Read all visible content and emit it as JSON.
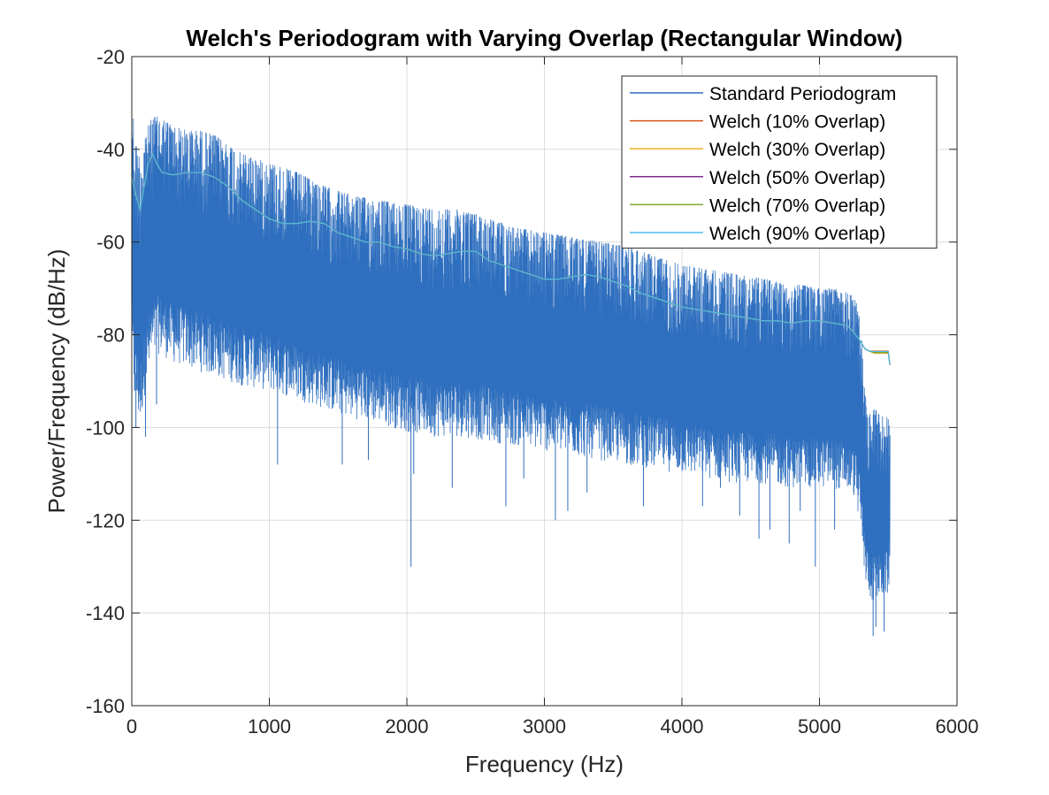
{
  "chart_data": {
    "type": "line",
    "title": "Welch's Periodogram with Varying Overlap (Rectangular Window)",
    "xlabel": "Frequency (Hz)",
    "ylabel": "Power/Frequency (dB/Hz)",
    "xlim": [
      0,
      6000
    ],
    "ylim": [
      -160,
      -20
    ],
    "xticks": [
      0,
      1000,
      2000,
      3000,
      4000,
      5000,
      6000
    ],
    "yticks": [
      -160,
      -140,
      -120,
      -100,
      -80,
      -60,
      -40,
      -20
    ],
    "xtick_labels": [
      "0",
      "1000",
      "2000",
      "3000",
      "4000",
      "5000",
      "6000"
    ],
    "ytick_labels": [
      "-160",
      "-140",
      "-120",
      "-100",
      "-80",
      "-60",
      "-40",
      "-20"
    ],
    "grid": true,
    "legend_position": "top-right",
    "standard_periodogram": {
      "name": "Standard Periodogram",
      "color": "#2f6fbf",
      "upper_envelope": {
        "x": [
          0,
          20,
          60,
          100,
          150,
          200,
          300,
          400,
          500,
          600,
          700,
          800,
          1000,
          1200,
          1400,
          1600,
          1800,
          2000,
          2200,
          2400,
          2600,
          2800,
          3000,
          3200,
          3400,
          3600,
          3800,
          4000,
          4200,
          4400,
          4600,
          4800,
          5000,
          5100,
          5200,
          5260,
          5300,
          5320,
          5350,
          5400,
          5450,
          5500,
          5512
        ],
        "y": [
          -28,
          -38,
          -42,
          -36,
          -33,
          -33,
          -35,
          -36,
          -36,
          -37,
          -39,
          -41,
          -43,
          -45,
          -48,
          -50,
          -51,
          -52,
          -53,
          -53,
          -55,
          -57,
          -58,
          -59,
          -60,
          -61,
          -63,
          -65,
          -66,
          -67,
          -68,
          -69,
          -70,
          -70,
          -71,
          -72,
          -78,
          -90,
          -97,
          -96,
          -97,
          -98,
          -99
        ]
      },
      "lower_envelope": {
        "x": [
          0,
          20,
          60,
          100,
          150,
          200,
          300,
          400,
          500,
          600,
          700,
          800,
          1000,
          1200,
          1400,
          1600,
          1800,
          2000,
          2200,
          2400,
          2600,
          2800,
          3000,
          3200,
          3400,
          3600,
          3800,
          4000,
          4200,
          4400,
          4600,
          4800,
          5000,
          5100,
          5200,
          5260,
          5300,
          5320,
          5350,
          5400,
          5450,
          5500,
          5512
        ],
        "y": [
          -86,
          -95,
          -100,
          -92,
          -86,
          -84,
          -86,
          -87,
          -88,
          -89,
          -90,
          -91,
          -92,
          -94,
          -96,
          -98,
          -99,
          -101,
          -102,
          -102,
          -103,
          -104,
          -105,
          -106,
          -107,
          -108,
          -109,
          -110,
          -111,
          -112,
          -112,
          -113,
          -113,
          -113,
          -114,
          -115,
          -122,
          -130,
          -136,
          -138,
          -137,
          -136,
          -132
        ]
      },
      "spikes": {
        "x": [
          30,
          100,
          180,
          1060,
          1530,
          1720,
          2030,
          2050,
          2330,
          2720,
          2850,
          3080,
          3170,
          3310,
          3720,
          4150,
          4280,
          4420,
          4560,
          4640,
          4780,
          4860,
          4970,
          5110,
          5170,
          5390,
          5410,
          5470
        ],
        "y": [
          -100,
          -102,
          -95,
          -108,
          -108,
          -107,
          -130,
          -110,
          -113,
          -117,
          -111,
          -120,
          -118,
          -114,
          -117,
          -117,
          -113,
          -119,
          -124,
          -122,
          -125,
          -118,
          -130,
          -122,
          -111,
          -145,
          -143,
          -144
        ]
      }
    },
    "series": [
      {
        "name": "Welch (10% Overlap)",
        "color": "#d95319",
        "x": [
          0,
          30,
          60,
          90,
          120,
          150,
          180,
          220,
          300,
          400,
          500,
          600,
          700,
          800,
          900,
          1000,
          1100,
          1200,
          1300,
          1400,
          1500,
          1600,
          1700,
          1800,
          1900,
          2000,
          2100,
          2200,
          2300,
          2400,
          2500,
          2600,
          2700,
          2800,
          2900,
          3000,
          3100,
          3200,
          3300,
          3400,
          3500,
          3600,
          3700,
          3800,
          3900,
          4000,
          4100,
          4200,
          4300,
          4400,
          4500,
          4600,
          4700,
          4800,
          4900,
          5000,
          5100,
          5200,
          5250,
          5300,
          5330,
          5360,
          5400,
          5450,
          5500,
          5512
        ],
        "y": [
          -46,
          -50,
          -53,
          -48,
          -43,
          -41,
          -43,
          -45,
          -45.5,
          -45,
          -45,
          -46,
          -48,
          -51,
          -53,
          -55,
          -56,
          -56,
          -55.5,
          -56,
          -58,
          -59,
          -60,
          -60,
          -61,
          -61.5,
          -62.5,
          -63,
          -62.5,
          -62,
          -62,
          -64,
          -65,
          -66,
          -67,
          -68,
          -68,
          -67.5,
          -67,
          -67.5,
          -68.5,
          -69.5,
          -71,
          -72,
          -73,
          -74,
          -74.5,
          -75,
          -75.5,
          -76,
          -76.5,
          -77,
          -77,
          -77.5,
          -77,
          -77,
          -77.5,
          -78,
          -79.5,
          -81.5,
          -83,
          -83.5,
          -83.5,
          -83.5,
          -83.5,
          -86.5
        ]
      },
      {
        "name": "Welch (30% Overlap)",
        "color": "#edb120",
        "x": [
          0,
          30,
          60,
          90,
          120,
          150,
          180,
          220,
          300,
          400,
          500,
          600,
          700,
          800,
          900,
          1000,
          1100,
          1200,
          1300,
          1400,
          1500,
          1600,
          1700,
          1800,
          1900,
          2000,
          2100,
          2200,
          2300,
          2400,
          2500,
          2600,
          2700,
          2800,
          2900,
          3000,
          3100,
          3200,
          3300,
          3400,
          3500,
          3600,
          3700,
          3800,
          3900,
          4000,
          4100,
          4200,
          4300,
          4400,
          4500,
          4600,
          4700,
          4800,
          4900,
          5000,
          5100,
          5200,
          5250,
          5300,
          5330,
          5360,
          5400,
          5450,
          5500,
          5512
        ],
        "y": [
          -46,
          -50,
          -53,
          -48,
          -43,
          -41,
          -43,
          -45,
          -45.5,
          -45,
          -45,
          -46,
          -48,
          -51,
          -53,
          -55,
          -56,
          -56,
          -55.5,
          -56,
          -58,
          -59,
          -60,
          -60,
          -61,
          -61.5,
          -62.5,
          -63,
          -62.5,
          -62,
          -62,
          -64,
          -65,
          -66,
          -67,
          -68,
          -68,
          -67.5,
          -67,
          -67.5,
          -68.5,
          -69.5,
          -71,
          -72,
          -73,
          -74,
          -74.5,
          -75,
          -75.5,
          -76,
          -76.5,
          -77,
          -77,
          -77.5,
          -77,
          -77,
          -77.5,
          -78,
          -79.5,
          -81.5,
          -83,
          -83.5,
          -84,
          -84,
          -84,
          -86.5
        ]
      },
      {
        "name": "Welch (50% Overlap)",
        "color": "#7e2f8e",
        "x": [
          0,
          30,
          60,
          90,
          120,
          150,
          180,
          220,
          300,
          400,
          500,
          600,
          700,
          800,
          900,
          1000,
          1100,
          1200,
          1300,
          1400,
          1500,
          1600,
          1700,
          1800,
          1900,
          2000,
          2100,
          2200,
          2300,
          2400,
          2500,
          2600,
          2700,
          2800,
          2900,
          3000,
          3100,
          3200,
          3300,
          3400,
          3500,
          3600,
          3700,
          3800,
          3900,
          4000,
          4100,
          4200,
          4300,
          4400,
          4500,
          4600,
          4700,
          4800,
          4900,
          5000,
          5100,
          5200,
          5250,
          5300,
          5330,
          5360,
          5400,
          5450,
          5500,
          5512
        ],
        "y": [
          -46,
          -50,
          -53,
          -48,
          -43,
          -41,
          -43,
          -45,
          -45.5,
          -45,
          -45,
          -46,
          -48,
          -51,
          -53,
          -55,
          -56,
          -56,
          -55.5,
          -56,
          -58,
          -59,
          -60,
          -60,
          -61,
          -61.5,
          -62.5,
          -63,
          -62.5,
          -62,
          -62,
          -64,
          -65,
          -66,
          -67,
          -68,
          -68,
          -67.5,
          -67,
          -67.5,
          -68.5,
          -69.5,
          -71,
          -72,
          -73,
          -74,
          -74.5,
          -75,
          -75.5,
          -76,
          -76.5,
          -77,
          -77,
          -77.5,
          -77,
          -77,
          -77.5,
          -78,
          -79.5,
          -81.5,
          -83,
          -83.5,
          -83.8,
          -83.8,
          -83.8,
          -86.5
        ]
      },
      {
        "name": "Welch (70% Overlap)",
        "color": "#77ac30",
        "x": [
          0,
          30,
          60,
          90,
          120,
          150,
          180,
          220,
          300,
          400,
          500,
          600,
          700,
          800,
          900,
          1000,
          1100,
          1200,
          1300,
          1400,
          1500,
          1600,
          1700,
          1800,
          1900,
          2000,
          2100,
          2200,
          2300,
          2400,
          2500,
          2600,
          2700,
          2800,
          2900,
          3000,
          3100,
          3200,
          3300,
          3400,
          3500,
          3600,
          3700,
          3800,
          3900,
          4000,
          4100,
          4200,
          4300,
          4400,
          4500,
          4600,
          4700,
          4800,
          4900,
          5000,
          5100,
          5200,
          5250,
          5300,
          5330,
          5360,
          5400,
          5450,
          5500,
          5512
        ],
        "y": [
          -46,
          -50,
          -53,
          -48,
          -43,
          -41,
          -43,
          -45,
          -45.5,
          -45,
          -45,
          -46,
          -48,
          -51,
          -53,
          -55,
          -56,
          -56,
          -55.5,
          -56,
          -58,
          -59,
          -60,
          -60,
          -61,
          -61.5,
          -62.5,
          -63,
          -62.5,
          -62,
          -62,
          -64,
          -65,
          -66,
          -67,
          -68,
          -68,
          -67.5,
          -67,
          -67.5,
          -68.5,
          -69.5,
          -71,
          -72,
          -73,
          -74,
          -74.5,
          -75,
          -75.5,
          -76,
          -76.5,
          -77,
          -77,
          -77.5,
          -77,
          -77,
          -77.5,
          -78,
          -79.5,
          -81.5,
          -83,
          -83.5,
          -83.8,
          -83.8,
          -83.8,
          -86.5
        ]
      },
      {
        "name": "Welch (90% Overlap)",
        "color": "#4dbeee",
        "x": [
          0,
          30,
          60,
          90,
          120,
          150,
          180,
          220,
          300,
          400,
          500,
          600,
          700,
          800,
          900,
          1000,
          1100,
          1200,
          1300,
          1400,
          1500,
          1600,
          1700,
          1800,
          1900,
          2000,
          2100,
          2200,
          2300,
          2400,
          2500,
          2600,
          2700,
          2800,
          2900,
          3000,
          3100,
          3200,
          3300,
          3400,
          3500,
          3600,
          3700,
          3800,
          3900,
          4000,
          4100,
          4200,
          4300,
          4400,
          4500,
          4600,
          4700,
          4800,
          4900,
          5000,
          5100,
          5200,
          5250,
          5300,
          5330,
          5360,
          5400,
          5450,
          5500,
          5512
        ],
        "y": [
          -46,
          -50,
          -53,
          -48,
          -43,
          -41,
          -43,
          -45,
          -45.5,
          -45,
          -45,
          -46,
          -48,
          -51,
          -53,
          -55,
          -56,
          -56,
          -55.5,
          -56,
          -58,
          -59,
          -60,
          -60,
          -61,
          -61.5,
          -62.5,
          -63,
          -62.5,
          -62,
          -62,
          -64,
          -65,
          -66,
          -67,
          -68,
          -68,
          -67.5,
          -67,
          -67.5,
          -68.5,
          -69.5,
          -71,
          -72,
          -73,
          -74,
          -74.5,
          -75,
          -75.5,
          -76,
          -76.5,
          -77,
          -77,
          -77.5,
          -77,
          -77,
          -77.5,
          -78,
          -79.5,
          -81.5,
          -83,
          -83.5,
          -83.6,
          -83.6,
          -83.6,
          -86.5
        ]
      }
    ],
    "legend": [
      {
        "label": "Standard Periodogram",
        "color": "#2f6fbf"
      },
      {
        "label": "Welch (10% Overlap)",
        "color": "#d95319"
      },
      {
        "label": "Welch (30% Overlap)",
        "color": "#edb120"
      },
      {
        "label": "Welch (50% Overlap)",
        "color": "#7e2f8e"
      },
      {
        "label": "Welch (70% Overlap)",
        "color": "#77ac30"
      },
      {
        "label": "Welch (90% Overlap)",
        "color": "#4dbeee"
      }
    ]
  }
}
